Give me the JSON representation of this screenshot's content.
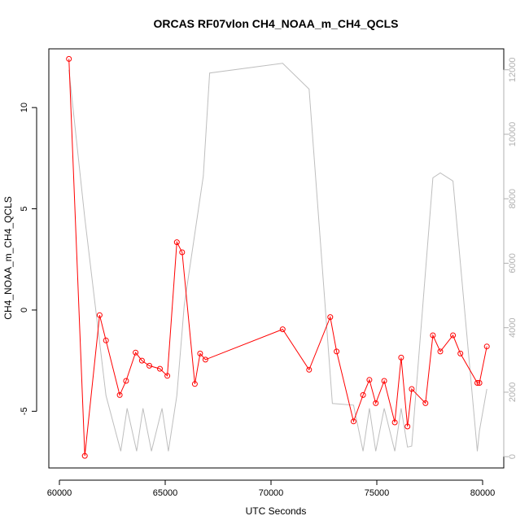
{
  "chart_data": {
    "type": "line",
    "title": "ORCAS RF07vlon CH4_NOAA_m_CH4_QCLS",
    "xlabel": "UTC Seconds",
    "ylabel": "CH4_NOAA_m_CH4_QCLS",
    "xlim": [
      59500,
      81000
    ],
    "ylim": [
      -7.8,
      12.9
    ],
    "y2lim": [
      -350,
      12650
    ],
    "x_ticks": [
      60000,
      65000,
      70000,
      75000,
      80000
    ],
    "y_ticks": [
      -5,
      0,
      5,
      10
    ],
    "y2_ticks": [
      0,
      2000,
      4000,
      6000,
      8000,
      10000,
      12000
    ],
    "grid": false,
    "legend": "none",
    "series": [
      {
        "axis": "left",
        "color": "#ff0000",
        "marker": "open-circle",
        "x": [
          60450,
          61200,
          61900,
          62200,
          62850,
          63150,
          63600,
          63900,
          64250,
          64750,
          65100,
          65550,
          65800,
          66400,
          66650,
          66900,
          70550,
          71800,
          72800,
          73100,
          73900,
          74350,
          74650,
          74950,
          75350,
          75850,
          76150,
          76450,
          76650,
          77300,
          77650,
          78000,
          78600,
          78950,
          79750,
          79850,
          80200
        ],
        "y": [
          12.4,
          -7.2,
          -0.25,
          -1.5,
          -4.2,
          -3.5,
          -2.1,
          -2.5,
          -2.75,
          -2.9,
          -3.25,
          3.35,
          2.85,
          -3.65,
          -2.15,
          -2.45,
          -0.95,
          -2.95,
          -0.35,
          -2.05,
          -5.5,
          -4.2,
          -3.45,
          -4.6,
          -3.5,
          -5.55,
          -2.35,
          -5.75,
          -3.9,
          -4.6,
          -1.25,
          -2.05,
          -1.25,
          -2.15,
          -3.6,
          -3.6,
          -1.8
        ]
      },
      {
        "axis": "right",
        "color": "#bebebe",
        "marker": "none",
        "x": [
          60450,
          61200,
          62200,
          62900,
          63200,
          63650,
          63950,
          64350,
          64850,
          65150,
          65550,
          65900,
          66800,
          67100,
          70550,
          71800,
          72900,
          73900,
          74350,
          74650,
          74950,
          75350,
          75850,
          76150,
          76450,
          76650,
          77650,
          78000,
          78600,
          79750,
          79850,
          80200
        ],
        "y": [
          12000,
          7400,
          1900,
          170,
          1500,
          170,
          1500,
          170,
          1500,
          170,
          1900,
          4700,
          8700,
          11900,
          12200,
          11400,
          1650,
          1600,
          170,
          1500,
          170,
          1500,
          170,
          1500,
          300,
          330,
          8650,
          8800,
          8550,
          170,
          800,
          2100
        ]
      }
    ]
  }
}
